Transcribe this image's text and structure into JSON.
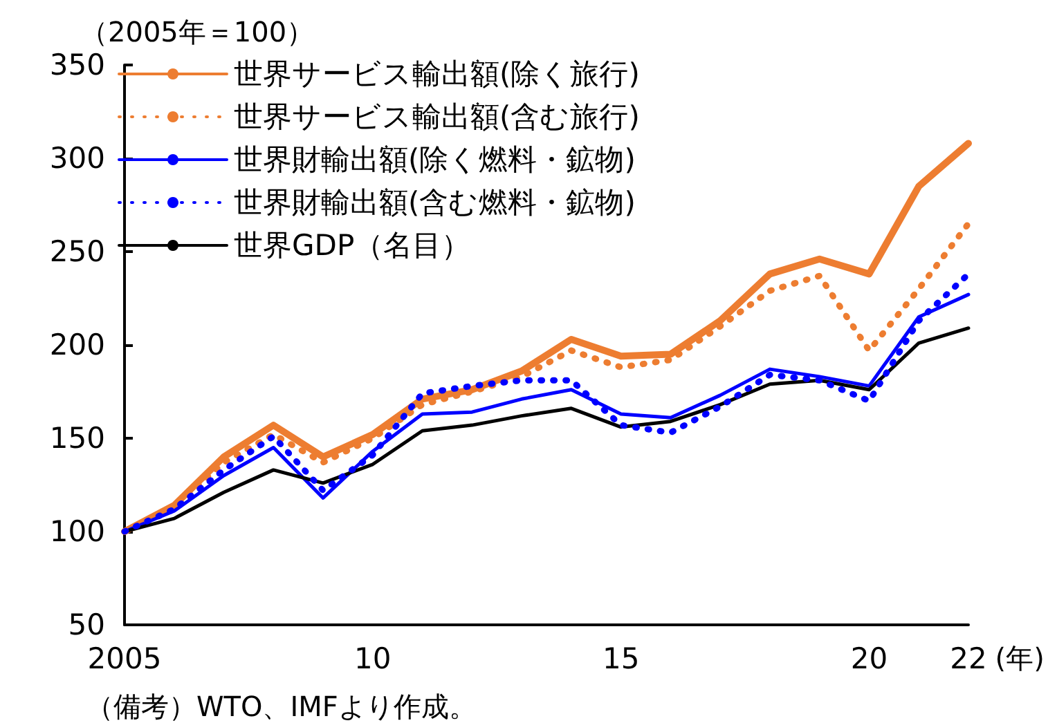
{
  "chart_data": {
    "type": "line",
    "ylabel": "（2005年＝100）",
    "xlabel": "(年)",
    "annotations": [
      "（備考）WTO、IMFより作成。"
    ],
    "x": [
      2005,
      2006,
      2007,
      2008,
      2009,
      2010,
      2011,
      2012,
      2013,
      2014,
      2015,
      2016,
      2017,
      2018,
      2019,
      2020,
      2021,
      2022
    ],
    "xlim": [
      2005,
      2022
    ],
    "xticks": [
      2005,
      {
        "value": 2010,
        "label": "10"
      },
      {
        "value": 2015,
        "label": "15"
      },
      {
        "value": 2020,
        "label": "20"
      },
      {
        "value": 2022,
        "label": "22"
      }
    ],
    "ylim": [
      50,
      350
    ],
    "yticks": [
      50,
      100,
      150,
      200,
      250,
      300,
      350
    ],
    "grid": false,
    "legend": "top left",
    "marker": "none",
    "series": [
      {
        "name": "世界サービス輸出額(除く旅行)",
        "color": "#ed7d31",
        "line_style": "solid",
        "values": [
          100,
          114,
          140,
          157,
          140,
          152,
          171,
          176,
          186,
          203,
          194,
          195,
          213,
          238,
          246,
          238,
          285,
          308
        ]
      },
      {
        "name": "世界サービス輸出額(含む旅行)",
        "color": "#ed7d31",
        "line_style": "dotted",
        "values": [
          100,
          113,
          137,
          152,
          137,
          150,
          168,
          175,
          183,
          197,
          188,
          192,
          210,
          229,
          237,
          197,
          230,
          265
        ]
      },
      {
        "name": "世界財輸出額(除く燃料・鉱物)",
        "color": "#0000ff",
        "line_style": "solid",
        "values": [
          100,
          111,
          130,
          145,
          118,
          143,
          163,
          164,
          171,
          176,
          163,
          161,
          173,
          187,
          183,
          178,
          215,
          227
        ]
      },
      {
        "name": "世界財輸出額(含む燃料・鉱物)",
        "color": "#0000ff",
        "line_style": "dotted",
        "values": [
          100,
          112,
          133,
          151,
          122,
          141,
          174,
          178,
          181,
          181,
          157,
          153,
          167,
          184,
          181,
          170,
          213,
          238
        ]
      },
      {
        "name": "世界GDP（名目）",
        "color": "#000000",
        "line_style": "solid",
        "values": [
          100,
          107,
          121,
          133,
          126,
          136,
          154,
          157,
          162,
          166,
          156,
          159,
          168,
          179,
          181,
          176,
          201,
          209
        ]
      }
    ]
  }
}
